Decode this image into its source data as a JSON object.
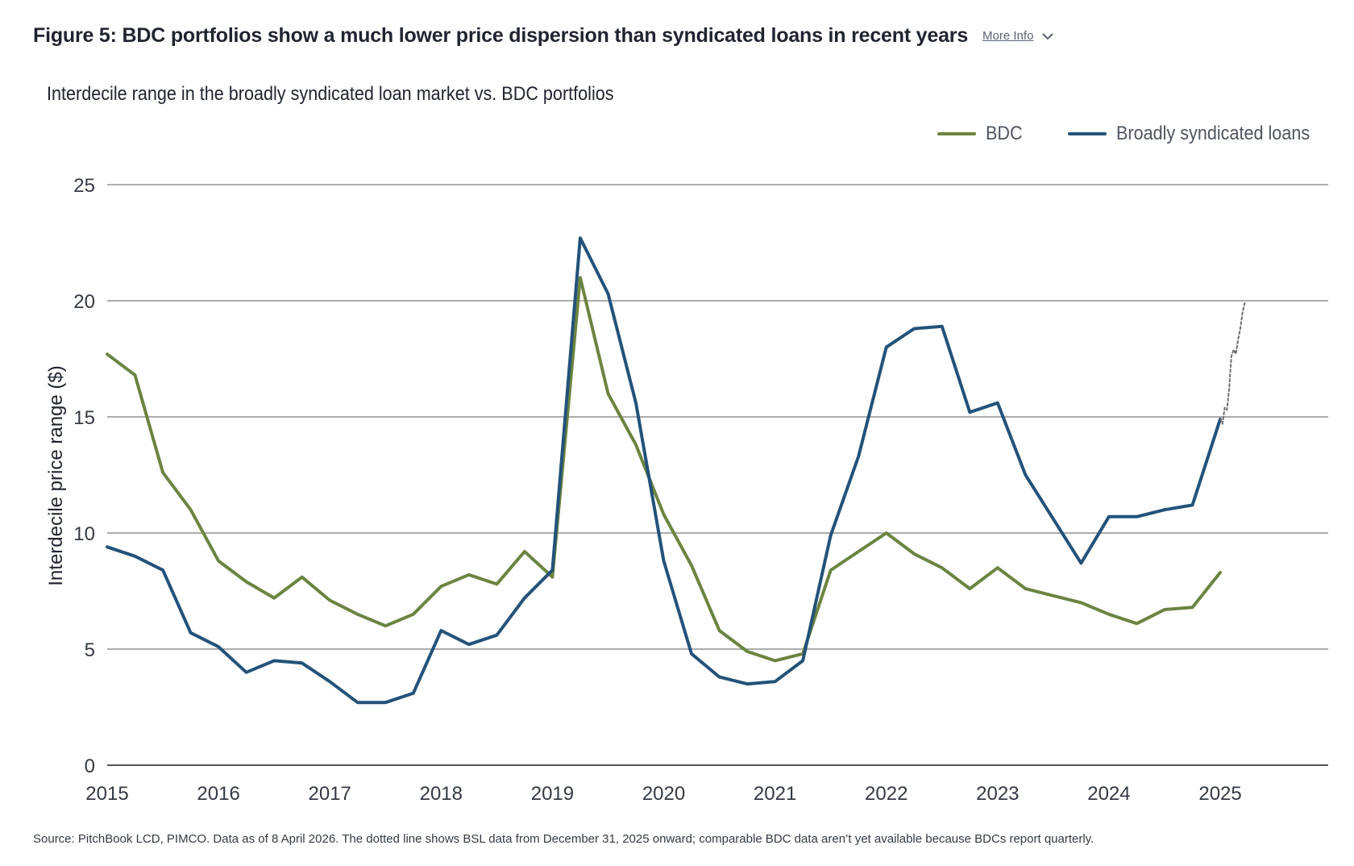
{
  "header": {
    "title": "Figure 5: BDC portfolios show a much lower price dispersion than syndicated loans in recent years",
    "more_info_label": "More Info"
  },
  "source_note": "Source: PitchBook LCD, PIMCO. Data as of 8 April 2026. The dotted line shows BSL data from December 31, 2025 onward; comparable BDC data aren’t yet available because BDCs report quarterly.",
  "colors": {
    "bdc": "#6b8440",
    "bsl": "#23527a",
    "dotted": "#6e6e6e",
    "grid": "#7a7a7a"
  },
  "chart_data": {
    "type": "line",
    "title": "Interdecile range in the broadly syndicated loan market vs. BDC portfolios",
    "xlabel": "",
    "ylabel": "Interdecile price range ($)",
    "xlim": [
      2015,
      2025.22
    ],
    "ylim": [
      0,
      25
    ],
    "x_ticks": [
      2015,
      2016,
      2017,
      2018,
      2019,
      2020,
      2021,
      2022,
      2023,
      2024,
      2025
    ],
    "x_tick_labels": [
      "2015",
      "2016",
      "2017",
      "2018",
      "2019",
      "2020",
      "2021",
      "2022",
      "2023",
      "2024",
      "2025"
    ],
    "y_ticks": [
      0,
      5,
      10,
      15,
      20,
      25
    ],
    "y_tick_labels": [
      "0",
      "5",
      "10",
      "15",
      "20",
      "25"
    ],
    "grid": true,
    "legend_position": "top-right",
    "series": [
      {
        "name": "BDC",
        "style": "solid",
        "x": [
          2015.0,
          2015.25,
          2015.5,
          2015.75,
          2016.0,
          2016.25,
          2016.5,
          2016.75,
          2017.0,
          2017.25,
          2017.5,
          2017.75,
          2018.0,
          2018.25,
          2018.5,
          2018.75,
          2019.0,
          2019.25,
          2019.5,
          2019.75,
          2020.0,
          2020.25,
          2020.5,
          2020.75,
          2021.0,
          2021.25,
          2021.5,
          2021.75,
          2022.0,
          2022.25,
          2022.5,
          2022.75,
          2023.0,
          2023.25,
          2023.5,
          2023.75,
          2024.0,
          2024.25,
          2024.5,
          2024.75,
          2025.0
        ],
        "values": [
          17.7,
          16.8,
          12.6,
          11.0,
          8.8,
          7.9,
          7.2,
          8.1,
          7.1,
          6.5,
          6.0,
          6.5,
          7.7,
          8.2,
          7.8,
          9.2,
          8.1,
          21.0,
          16.0,
          13.8,
          10.8,
          8.6,
          5.8,
          4.9,
          4.5,
          4.8,
          8.4,
          9.2,
          10.0,
          9.1,
          8.5,
          7.6,
          8.5,
          7.6,
          7.3,
          7.0,
          6.5,
          6.1,
          6.7,
          6.8,
          8.3
        ]
      },
      {
        "name": "Broadly syndicated loans",
        "style": "solid",
        "x": [
          2015.0,
          2015.25,
          2015.5,
          2015.75,
          2016.0,
          2016.25,
          2016.5,
          2016.75,
          2017.0,
          2017.25,
          2017.5,
          2017.75,
          2018.0,
          2018.25,
          2018.5,
          2018.75,
          2019.0,
          2019.25,
          2019.5,
          2019.75,
          2020.0,
          2020.25,
          2020.5,
          2020.75,
          2021.0,
          2021.25,
          2021.5,
          2021.75,
          2022.0,
          2022.25,
          2022.5,
          2022.75,
          2023.0,
          2023.25,
          2023.5,
          2023.75,
          2024.0,
          2024.25,
          2024.5,
          2024.75,
          2025.0
        ],
        "values": [
          9.4,
          9.0,
          8.4,
          5.7,
          5.1,
          4.0,
          4.5,
          4.4,
          3.6,
          2.7,
          2.7,
          3.1,
          5.8,
          5.2,
          5.6,
          7.2,
          8.4,
          22.7,
          20.3,
          15.6,
          8.8,
          4.8,
          3.8,
          3.5,
          3.6,
          4.5,
          9.9,
          13.3,
          18.0,
          18.8,
          18.9,
          15.2,
          15.6,
          12.5,
          10.6,
          8.7,
          10.7,
          10.7,
          11.0,
          11.2,
          14.9
        ]
      },
      {
        "name": "",
        "style": "dotted",
        "x": [
          2025.0,
          2025.02,
          2025.04,
          2025.06,
          2025.08,
          2025.1,
          2025.12,
          2025.14,
          2025.16,
          2025.18,
          2025.2,
          2025.22
        ],
        "values": [
          14.9,
          14.7,
          15.4,
          15.3,
          16.2,
          17.6,
          17.9,
          17.7,
          18.3,
          18.8,
          19.5,
          19.9
        ]
      }
    ]
  }
}
